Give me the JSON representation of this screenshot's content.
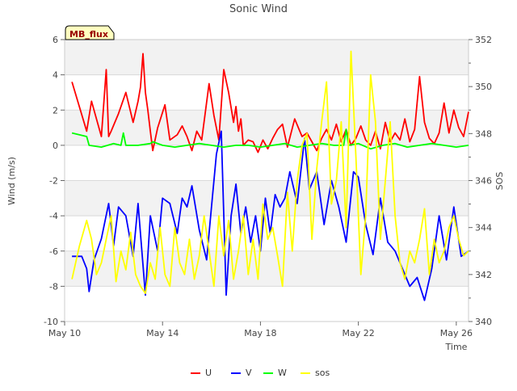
{
  "chart_data": {
    "type": "line",
    "title": "Sonic Wind",
    "xlabel": "Time",
    "ylabel": "Wind (m/s)",
    "y2label": "SOS",
    "annotation": "MB_flux",
    "xlim": [
      0,
      16.5
    ],
    "ylim": [
      -10,
      6
    ],
    "y2lim": [
      340,
      352
    ],
    "x_ticks": [
      {
        "x": 0,
        "label": "May 10"
      },
      {
        "x": 4,
        "label": "May 14"
      },
      {
        "x": 8,
        "label": "May 18"
      },
      {
        "x": 12,
        "label": "May 22"
      },
      {
        "x": 16,
        "label": "May 26"
      }
    ],
    "y_ticks": [
      {
        "v": 6,
        "label": "6"
      },
      {
        "v": 4,
        "label": "4"
      },
      {
        "v": 2,
        "label": "2"
      },
      {
        "v": 0,
        "label": "0"
      },
      {
        "v": -2,
        "label": "-2"
      },
      {
        "v": -4,
        "label": "-4"
      },
      {
        "v": -6,
        "label": "-6"
      },
      {
        "v": -8,
        "label": "-8"
      },
      {
        "v": -10,
        "label": "-10"
      }
    ],
    "y2_ticks": [
      {
        "v": 352,
        "label": "352"
      },
      {
        "v": 350,
        "label": "350"
      },
      {
        "v": 348,
        "label": "348"
      },
      {
        "v": 346,
        "label": "346"
      },
      {
        "v": 344,
        "label": "344"
      },
      {
        "v": 342,
        "label": "342"
      },
      {
        "v": 340,
        "label": "340"
      }
    ],
    "grid": true,
    "legend": "bottom-center",
    "series": [
      {
        "name": "U",
        "color": "#ff0000",
        "axis": "left",
        "x": [
          0.3,
          0.9,
          1.1,
          1.5,
          1.7,
          1.8,
          1.9,
          2.2,
          2.5,
          2.8,
          3.0,
          3.1,
          3.2,
          3.3,
          3.4,
          3.5,
          3.6,
          3.8,
          4.1,
          4.3,
          4.6,
          4.8,
          5.0,
          5.2,
          5.4,
          5.6,
          5.9,
          6.1,
          6.3,
          6.5,
          6.7,
          6.9,
          7.0,
          7.1,
          7.2,
          7.3,
          7.5,
          7.7,
          7.9,
          8.1,
          8.3,
          8.5,
          8.7,
          8.9,
          9.1,
          9.4,
          9.7,
          9.9,
          10.1,
          10.3,
          10.5,
          10.7,
          10.9,
          11.1,
          11.3,
          11.5,
          11.7,
          11.9,
          12.1,
          12.3,
          12.5,
          12.7,
          12.9,
          13.1,
          13.3,
          13.5,
          13.7,
          13.9,
          14.1,
          14.3,
          14.5,
          14.7,
          14.9,
          15.1,
          15.3,
          15.5,
          15.7,
          15.9,
          16.1,
          16.3,
          16.5
        ],
        "y": [
          3.6,
          0.8,
          2.5,
          0.5,
          4.3,
          0.5,
          0.8,
          1.8,
          3.0,
          1.3,
          2.5,
          3.3,
          5.2,
          3.0,
          2.0,
          0.8,
          -0.3,
          1.0,
          2.3,
          0.3,
          0.6,
          1.1,
          0.5,
          -0.3,
          0.8,
          0.3,
          3.5,
          1.7,
          0.3,
          4.3,
          3.0,
          1.3,
          2.2,
          0.8,
          1.5,
          0.0,
          0.3,
          0.2,
          -0.4,
          0.3,
          -0.2,
          0.4,
          0.9,
          1.2,
          -0.1,
          1.5,
          0.5,
          0.7,
          0.2,
          -0.3,
          0.4,
          0.9,
          0.3,
          1.2,
          0.2,
          0.9,
          0.0,
          0.4,
          1.1,
          0.3,
          0.0,
          0.8,
          -0.2,
          1.3,
          0.2,
          0.7,
          0.3,
          1.5,
          0.2,
          0.9,
          3.9,
          1.3,
          0.4,
          0.1,
          0.7,
          2.4,
          0.7,
          2.0,
          1.0,
          0.5,
          1.9
        ]
      },
      {
        "name": "V",
        "color": "#0000ff",
        "axis": "left",
        "x": [
          0.3,
          0.7,
          0.9,
          1.0,
          1.2,
          1.5,
          1.8,
          2.0,
          2.2,
          2.5,
          2.8,
          3.0,
          3.3,
          3.5,
          3.8,
          4.0,
          4.3,
          4.6,
          4.8,
          5.0,
          5.2,
          5.5,
          5.8,
          6.0,
          6.2,
          6.4,
          6.6,
          6.8,
          7.0,
          7.2,
          7.4,
          7.6,
          7.8,
          8.0,
          8.2,
          8.4,
          8.6,
          8.8,
          9.0,
          9.2,
          9.5,
          9.8,
          10.0,
          10.3,
          10.6,
          10.9,
          11.2,
          11.5,
          11.8,
          12.0,
          12.3,
          12.6,
          12.9,
          13.2,
          13.5,
          13.8,
          14.1,
          14.4,
          14.7,
          15.0,
          15.3,
          15.6,
          15.9,
          16.2,
          16.5
        ],
        "y": [
          -6.3,
          -6.3,
          -7.0,
          -8.3,
          -6.5,
          -5.3,
          -3.3,
          -5.7,
          -3.5,
          -4.0,
          -6.3,
          -3.3,
          -8.5,
          -4.0,
          -6.0,
          -3.0,
          -3.3,
          -5.0,
          -3.0,
          -3.5,
          -2.3,
          -4.8,
          -6.5,
          -3.5,
          -0.5,
          0.8,
          -8.5,
          -4.0,
          -2.2,
          -5.0,
          -3.5,
          -5.5,
          -4.0,
          -6.0,
          -3.0,
          -5.0,
          -2.8,
          -3.5,
          -3.0,
          -1.5,
          -3.3,
          0.4,
          -2.5,
          -1.5,
          -4.5,
          -2.0,
          -3.5,
          -5.5,
          -1.5,
          -1.8,
          -4.5,
          -6.2,
          -3.0,
          -5.5,
          -6.0,
          -7.0,
          -8.0,
          -7.5,
          -8.8,
          -7.0,
          -4.0,
          -6.5,
          -3.5,
          -6.3,
          -6.0
        ]
      },
      {
        "name": "W",
        "color": "#00ff00",
        "axis": "left",
        "x": [
          0.3,
          0.9,
          1.0,
          1.5,
          2.0,
          2.3,
          2.4,
          2.5,
          3.0,
          3.5,
          3.6,
          4.0,
          4.5,
          5.0,
          5.5,
          6.0,
          6.5,
          7.0,
          7.5,
          8.0,
          8.5,
          9.0,
          9.5,
          10.0,
          10.5,
          11.0,
          11.4,
          11.5,
          11.6,
          12.0,
          12.5,
          13.0,
          13.5,
          14.0,
          14.5,
          15.0,
          15.5,
          16.0,
          16.5
        ],
        "y": [
          0.7,
          0.5,
          0.0,
          -0.1,
          0.1,
          0.0,
          0.7,
          0.0,
          0.0,
          0.1,
          0.2,
          0.0,
          -0.1,
          0.0,
          0.1,
          0.0,
          -0.1,
          0.0,
          0.0,
          -0.1,
          0.0,
          0.1,
          -0.1,
          0.0,
          0.1,
          0.0,
          0.0,
          0.9,
          0.0,
          0.1,
          -0.2,
          0.0,
          0.1,
          -0.1,
          0.0,
          0.1,
          0.0,
          -0.1,
          0.0
        ]
      },
      {
        "name": "sos",
        "color": "#ffff00",
        "axis": "right",
        "x": [
          0.3,
          0.6,
          0.9,
          1.1,
          1.3,
          1.5,
          1.7,
          1.9,
          2.1,
          2.3,
          2.5,
          2.7,
          2.9,
          3.1,
          3.3,
          3.5,
          3.7,
          3.9,
          4.1,
          4.3,
          4.5,
          4.7,
          4.9,
          5.1,
          5.3,
          5.5,
          5.7,
          5.9,
          6.1,
          6.3,
          6.5,
          6.7,
          6.9,
          7.1,
          7.3,
          7.5,
          7.7,
          7.9,
          8.1,
          8.3,
          8.5,
          8.7,
          8.9,
          9.1,
          9.3,
          9.5,
          9.7,
          9.9,
          10.1,
          10.3,
          10.5,
          10.7,
          10.9,
          11.1,
          11.3,
          11.5,
          11.7,
          11.9,
          12.1,
          12.3,
          12.5,
          12.7,
          12.9,
          13.1,
          13.3,
          13.5,
          13.7,
          13.9,
          14.1,
          14.3,
          14.5,
          14.7,
          14.9,
          15.1,
          15.3,
          15.5,
          15.7,
          15.9,
          16.1,
          16.3,
          16.5
        ],
        "y": [
          341.8,
          343.2,
          344.3,
          343.5,
          342.0,
          342.5,
          343.5,
          344.5,
          341.7,
          343.0,
          342.2,
          343.8,
          342.0,
          341.5,
          341.2,
          342.5,
          341.8,
          344.0,
          342.0,
          341.5,
          344.0,
          342.5,
          342.0,
          343.5,
          341.8,
          342.8,
          344.5,
          343.0,
          341.5,
          344.5,
          342.8,
          344.3,
          341.8,
          343.0,
          344.5,
          342.0,
          343.5,
          341.8,
          345.0,
          343.5,
          344.0,
          342.8,
          341.5,
          345.5,
          343.0,
          346.0,
          347.5,
          348.0,
          343.5,
          346.5,
          348.5,
          350.2,
          345.0,
          346.0,
          348.5,
          344.0,
          351.5,
          347.0,
          342.0,
          344.5,
          350.5,
          348.5,
          343.5,
          346.0,
          348.5,
          344.5,
          342.5,
          341.8,
          343.0,
          342.5,
          343.5,
          344.8,
          342.0,
          343.5,
          342.5,
          343.0,
          344.0,
          344.5,
          343.5,
          342.8,
          343.0
        ]
      }
    ]
  }
}
